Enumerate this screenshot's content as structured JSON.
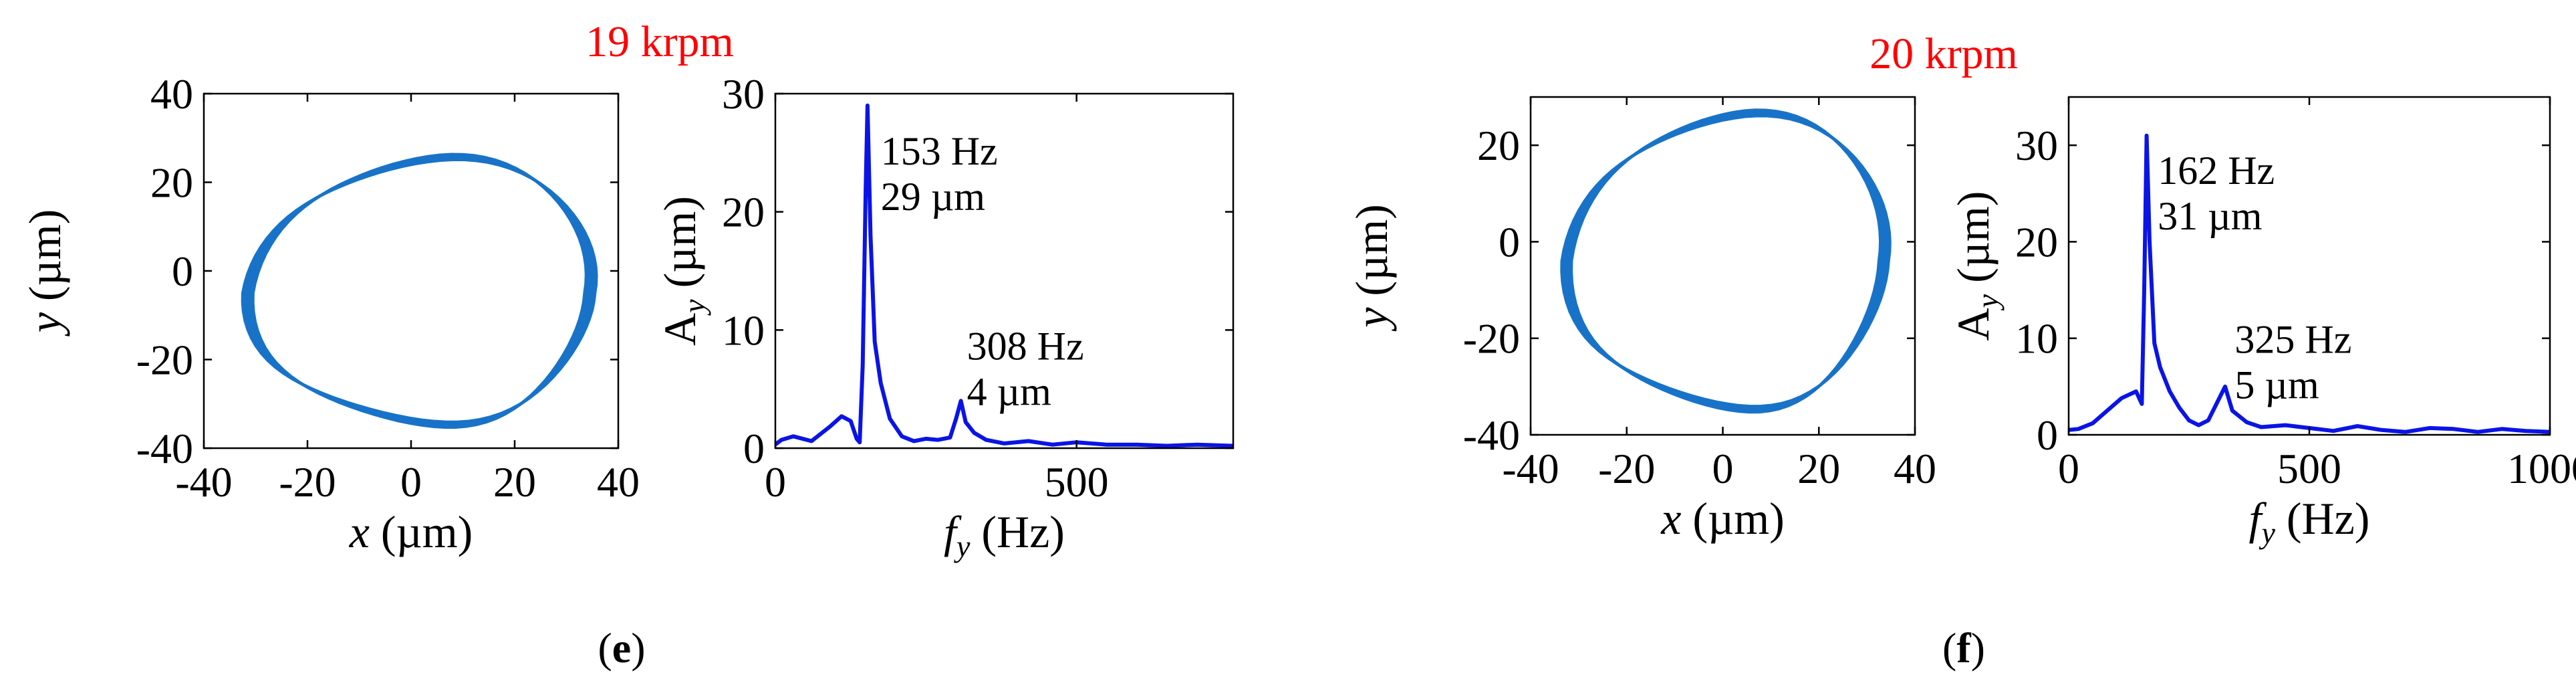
{
  "panels": [
    {
      "caption": "(e)",
      "caption_paren_open": "(",
      "caption_letter": "e",
      "caption_paren_close": ")",
      "speed_label": "19 krpm"
    },
    {
      "caption": "(f)",
      "caption_paren_open": "(",
      "caption_letter": "f",
      "caption_paren_close": ")",
      "speed_label": "20 krpm"
    }
  ],
  "colors": {
    "orbit": "#1873c8",
    "spectrum": "#0a14e6",
    "speed_label": "#ff0000",
    "axes": "#000000"
  },
  "chart_data": [
    {
      "type": "line",
      "panel": "e",
      "subtype": "orbit",
      "xlabel_var": "x",
      "xlabel_unit": " (µm)",
      "ylabel_var": "y",
      "ylabel_unit": " (µm)",
      "xlim": [
        -40,
        40
      ],
      "ylim": [
        -40,
        40
      ],
      "xticks": [
        -40,
        -20,
        0,
        20,
        40
      ],
      "yticks": [
        -40,
        -20,
        0,
        20,
        40
      ],
      "xticklabels": [
        "-40",
        "-20",
        "0",
        "20",
        "40"
      ],
      "yticklabels": [
        "-40",
        "-20",
        "0",
        "20",
        "40"
      ],
      "orbit": {
        "cx": 2.5,
        "cy": -5,
        "rx_right": 31,
        "rx_left": 33,
        "ry_top": 31,
        "ry_bottom": 30,
        "loops": 5
      }
    },
    {
      "type": "line",
      "panel": "e",
      "subtype": "spectrum",
      "xlabel_var": "f",
      "xlabel_sub": "y",
      "xlabel_unit": " (Hz)",
      "ylabel_var": "A",
      "ylabel_sub": "y",
      "ylabel_unit": " (µm)",
      "xlim": [
        0,
        760
      ],
      "ylim": [
        0,
        30
      ],
      "xticks": [
        0,
        500
      ],
      "yticks": [
        0,
        10,
        20,
        30
      ],
      "xticklabels": [
        "0",
        "500"
      ],
      "yticklabels": [
        "0",
        "10",
        "20",
        "30"
      ],
      "x": [
        0,
        10,
        30,
        60,
        90,
        110,
        125,
        135,
        140,
        145,
        150,
        153,
        158,
        165,
        175,
        190,
        210,
        230,
        250,
        270,
        290,
        300,
        308,
        316,
        330,
        350,
        380,
        420,
        460,
        500,
        550,
        600,
        650,
        700,
        760
      ],
      "y": [
        0.3,
        0.7,
        1.0,
        0.6,
        1.8,
        2.7,
        2.3,
        0.8,
        0.5,
        7,
        22,
        29,
        18,
        9,
        5.5,
        2.5,
        1.0,
        0.6,
        0.8,
        0.7,
        0.9,
        2.5,
        4,
        2.2,
        1.3,
        0.7,
        0.4,
        0.6,
        0.3,
        0.5,
        0.3,
        0.3,
        0.2,
        0.3,
        0.2
      ],
      "annotations": [
        {
          "line1": "153 Hz",
          "line2": "29 µm",
          "x": 175,
          "y": 24
        },
        {
          "line1": "308 Hz",
          "line2": "4 µm",
          "x": 318,
          "y": 7.5
        }
      ]
    },
    {
      "type": "line",
      "panel": "f",
      "subtype": "orbit",
      "xlabel_var": "x",
      "xlabel_unit": " (µm)",
      "ylabel_var": "y",
      "ylabel_unit": " (µm)",
      "xlim": [
        -40,
        40
      ],
      "ylim": [
        -40,
        30
      ],
      "xticks": [
        -40,
        -20,
        0,
        20,
        40
      ],
      "yticks": [
        -40,
        -20,
        0,
        20
      ],
      "xticklabels": [
        "-40",
        "-20",
        "0",
        "20",
        "40"
      ],
      "yticklabels": [
        "-40",
        "-20",
        "0",
        "20"
      ],
      "orbit": {
        "cx": 1.5,
        "cy": -4,
        "rx_right": 31,
        "rx_left": 33,
        "ry_top": 31,
        "ry_bottom": 31,
        "loops": 5
      }
    },
    {
      "type": "line",
      "panel": "f",
      "subtype": "spectrum",
      "xlabel_var": "f",
      "xlabel_sub": "y",
      "xlabel_unit": " (Hz)",
      "ylabel_var": "A",
      "ylabel_sub": "y",
      "ylabel_unit": " (µm)",
      "xlim": [
        0,
        1000
      ],
      "ylim": [
        0,
        35
      ],
      "xticks": [
        0,
        500,
        1000
      ],
      "yticks": [
        0,
        10,
        20,
        30
      ],
      "xticklabels": [
        "0",
        "500",
        "1000"
      ],
      "yticklabels": [
        "0",
        "10",
        "20",
        "30"
      ],
      "x": [
        0,
        20,
        50,
        80,
        110,
        140,
        152,
        157,
        162,
        168,
        178,
        190,
        210,
        230,
        250,
        270,
        290,
        310,
        325,
        340,
        370,
        400,
        450,
        500,
        550,
        600,
        650,
        700,
        750,
        800,
        850,
        900,
        950,
        1000
      ],
      "y": [
        0.5,
        0.6,
        1.2,
        2.5,
        3.8,
        4.5,
        3.2,
        15,
        31,
        20,
        9.5,
        7,
        4.5,
        2.8,
        1.5,
        1.0,
        1.5,
        3.5,
        5,
        2.5,
        1.3,
        0.8,
        1.0,
        0.7,
        0.4,
        0.9,
        0.5,
        0.3,
        0.7,
        0.6,
        0.3,
        0.6,
        0.4,
        0.3
      ],
      "annotations": [
        {
          "line1": "162 Hz",
          "line2": "31 µm",
          "x": 185,
          "y": 26
        },
        {
          "line1": "325 Hz",
          "line2": "5 µm",
          "x": 345,
          "y": 8.5
        }
      ]
    }
  ]
}
